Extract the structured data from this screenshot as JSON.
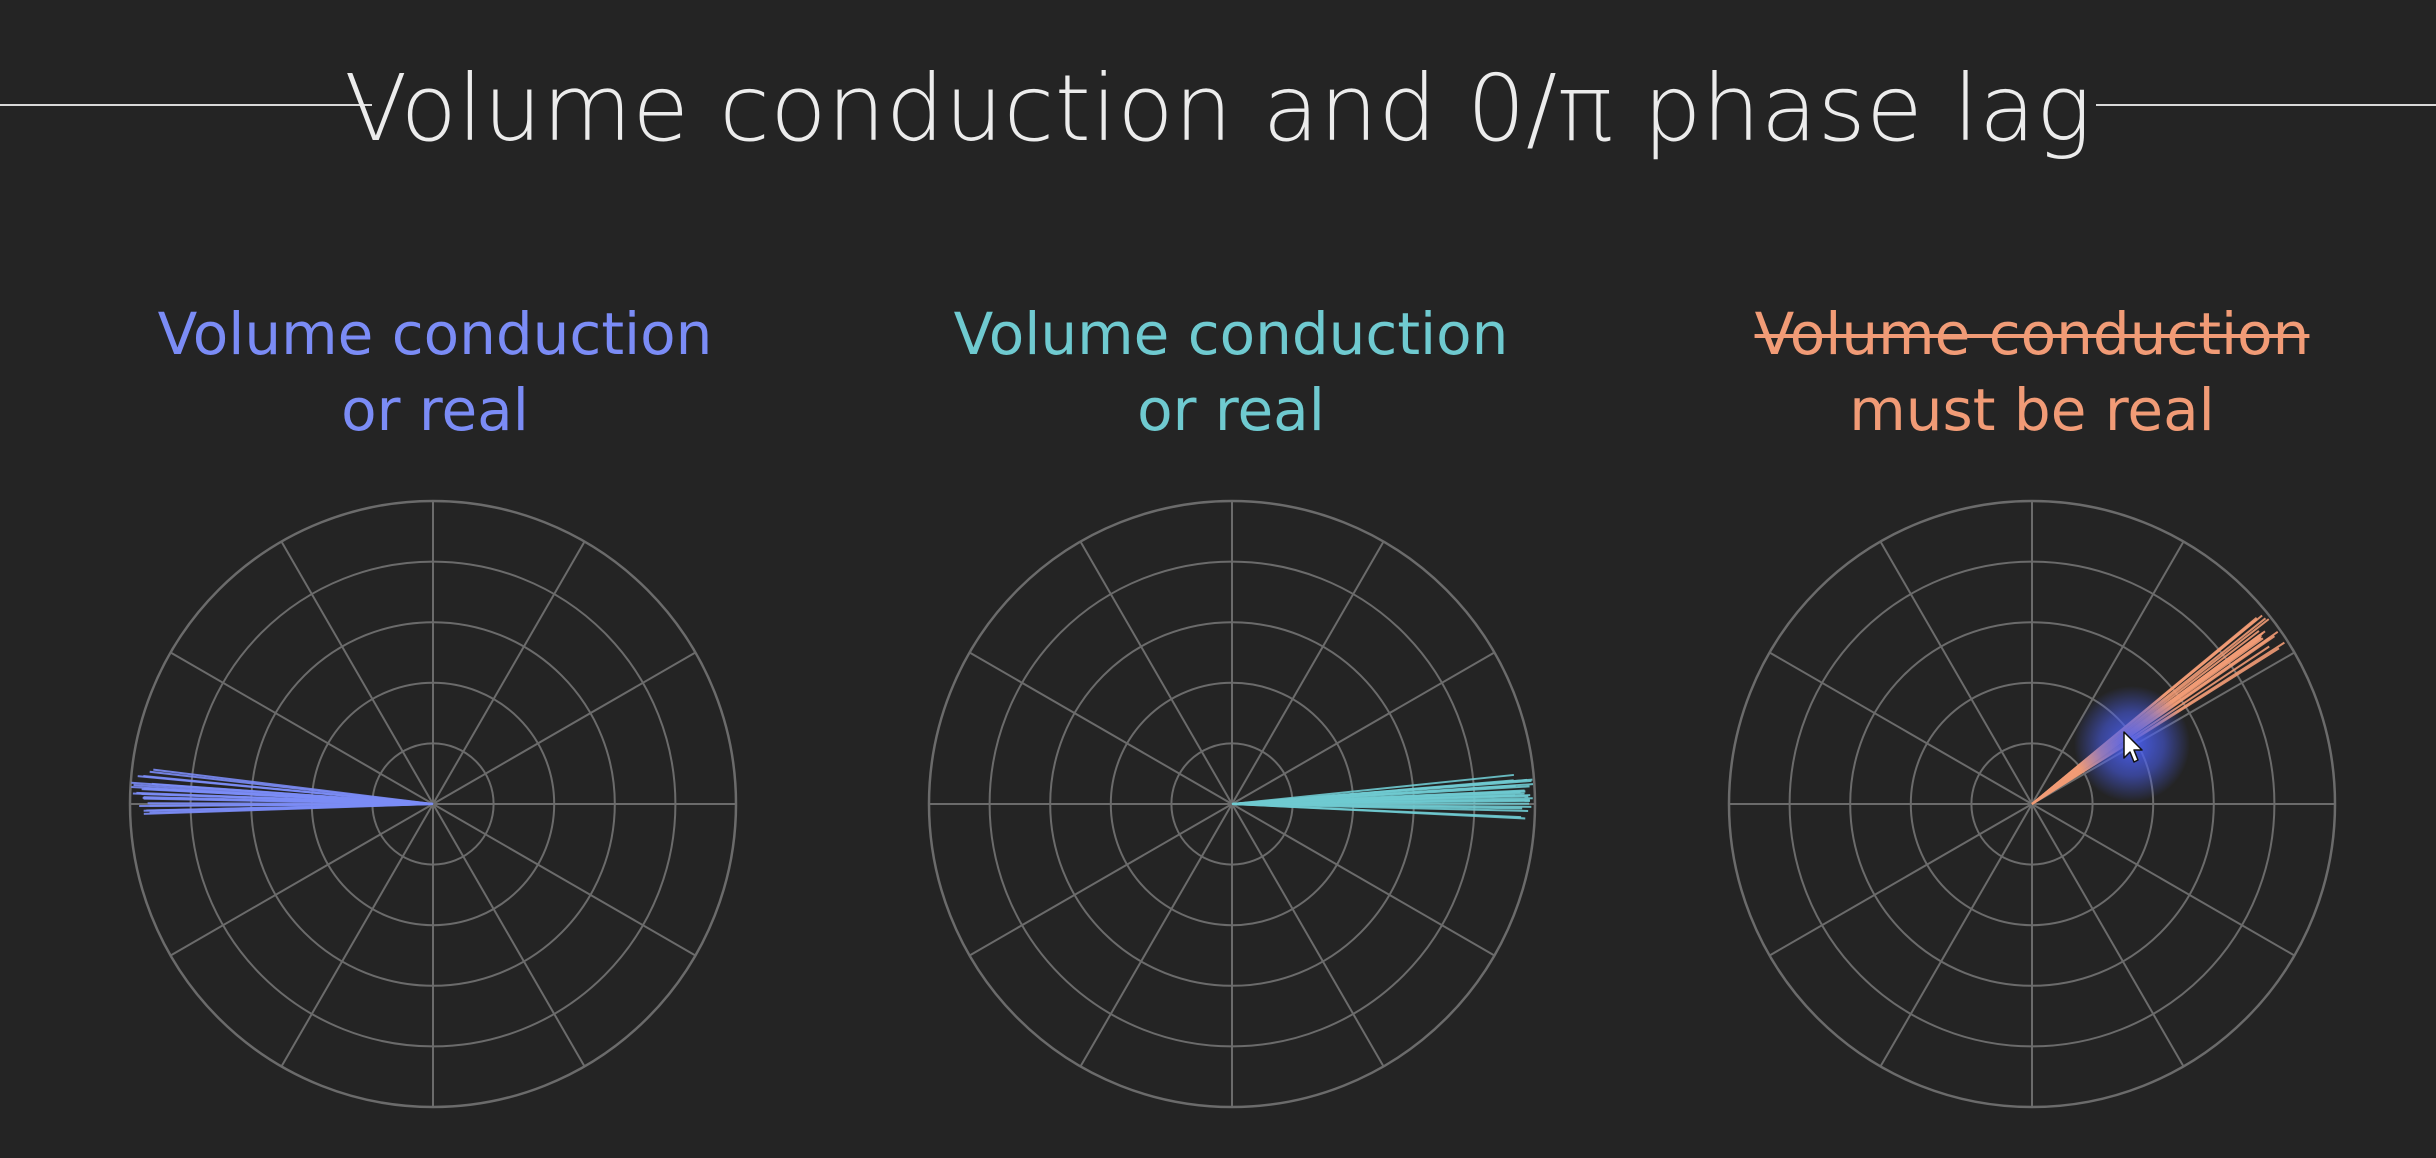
{
  "slide": {
    "title": "Volume conduction and 0/π phase lag"
  },
  "panels": [
    {
      "heading_line1": "Volume conduction",
      "heading_line2": "or real",
      "line1_struck": false,
      "color": "#7b8cf6",
      "center_angle_deg": 177.5,
      "spread_deg": 4.5,
      "vector_count": 24
    },
    {
      "heading_line1": "Volume conduction",
      "heading_line2": "or real",
      "line1_struck": false,
      "color": "#6fcad0",
      "center_angle_deg": 1.5,
      "spread_deg": 4.5,
      "vector_count": 24
    },
    {
      "heading_line1": "Volume conduction",
      "heading_line2": "must be real",
      "line1_struck": true,
      "color": "#f19b76",
      "center_angle_deg": 36,
      "spread_deg": 4,
      "vector_count": 22
    }
  ],
  "grid": {
    "color": "#6b6b6b",
    "rings": 5,
    "spokes": 12
  },
  "cursor": {
    "icon": "mouse-pointer-icon",
    "highlight_color": "#4a5ff0"
  }
}
